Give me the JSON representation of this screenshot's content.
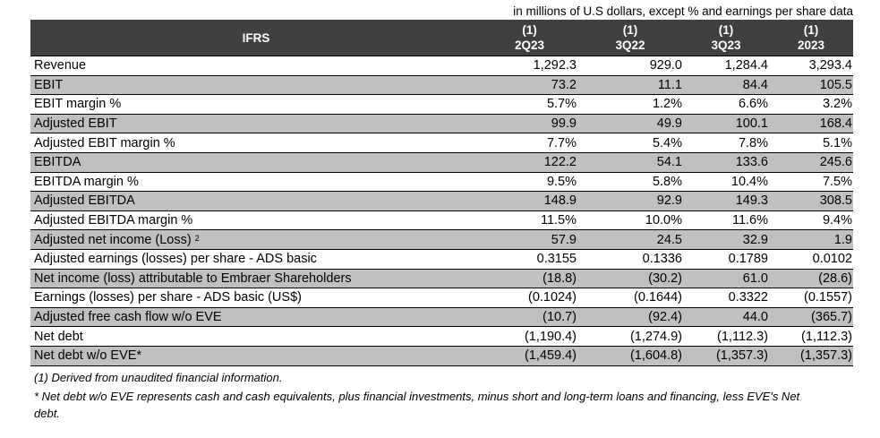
{
  "units_note": "in millions of U.S dollars, except % and earnings per share data",
  "header": {
    "label_col": "IFRS",
    "columns": [
      {
        "note": "(1)",
        "period": "2Q23"
      },
      {
        "note": "(1)",
        "period": "3Q22"
      },
      {
        "note": "(1)",
        "period": "3Q23"
      },
      {
        "note": "(1)",
        "period": "2023"
      }
    ]
  },
  "rows": [
    {
      "label": "Revenue",
      "sup": "",
      "values": [
        "1,292.3",
        "929.0",
        "1,284.4",
        "3,293.4"
      ]
    },
    {
      "label": "EBIT",
      "sup": "",
      "values": [
        "73.2",
        "11.1",
        "84.4",
        "105.5"
      ]
    },
    {
      "label": "EBIT margin %",
      "sup": "",
      "values": [
        "5.7%",
        "1.2%",
        "6.6%",
        "3.2%"
      ]
    },
    {
      "label": "Adjusted EBIT",
      "sup": "",
      "values": [
        "99.9",
        "49.9",
        "100.1",
        "168.4"
      ]
    },
    {
      "label": "Adjusted EBIT margin %",
      "sup": "",
      "values": [
        "7.7%",
        "5.4%",
        "7.8%",
        "5.1%"
      ]
    },
    {
      "label": "EBITDA",
      "sup": "",
      "values": [
        "122.2",
        "54.1",
        "133.6",
        "245.6"
      ]
    },
    {
      "label": "EBITDA margin %",
      "sup": "",
      "values": [
        "9.5%",
        "5.8%",
        "10.4%",
        "7.5%"
      ]
    },
    {
      "label": "Adjusted EBITDA",
      "sup": "",
      "values": [
        "148.9",
        "92.9",
        "149.3",
        "308.5"
      ]
    },
    {
      "label": "Adjusted EBITDA margin %",
      "sup": "",
      "values": [
        "11.5%",
        "10.0%",
        "11.6%",
        "9.4%"
      ]
    },
    {
      "label": "Adjusted net income (Loss) ",
      "sup": "2",
      "values": [
        "57.9",
        "24.5",
        "32.9",
        "1.9"
      ]
    },
    {
      "label": "Adjusted earnings (losses) per share - ADS basic",
      "sup": "",
      "values": [
        "0.3155",
        "0.1336",
        "0.1789",
        "0.0102"
      ]
    },
    {
      "label": "Net income (loss) attributable to Embraer Shareholders",
      "sup": "",
      "values": [
        "(18.8)",
        "(30.2)",
        "61.0",
        "(28.6)"
      ]
    },
    {
      "label": "Earnings (losses) per share - ADS basic (US$)",
      "sup": "",
      "values": [
        "(0.1024)",
        "(0.1644)",
        "0.3322",
        "(0.1557)"
      ]
    },
    {
      "label": "Adjusted free cash flow w/o EVE",
      "sup": "",
      "values": [
        "(10.7)",
        "(92.4)",
        "44.0",
        "(365.7)"
      ]
    },
    {
      "label": "Net debt",
      "sup": "",
      "values": [
        "(1,190.4)",
        "(1,274.9)",
        "(1,112.3)",
        "(1,112.3)"
      ]
    },
    {
      "label": "Net debt w/o EVE*",
      "sup": "",
      "values": [
        "(1,459.4)",
        "(1,604.8)",
        "(1,357.3)",
        "(1,357.3)"
      ]
    }
  ],
  "footnotes": [
    "(1) Derived from unaudited financial information.",
    "* Net debt w/o EVE represents cash and cash equivalents, plus financial investments, minus short and long-term loans and financing, less EVE's Net debt."
  ]
}
